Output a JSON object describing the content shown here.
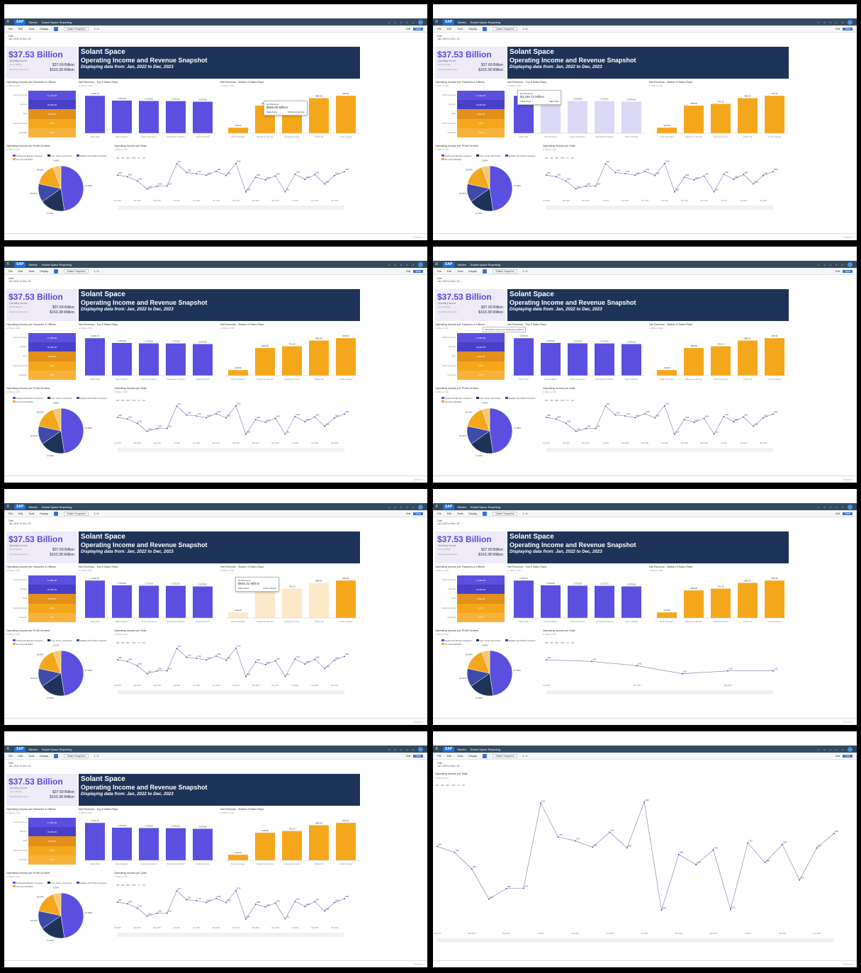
{
  "app": {
    "logo": "SAP",
    "section": "Stories",
    "story": "Solant Space Reporting",
    "menu": [
      "File",
      "Edit",
      "Tools",
      "Display"
    ],
    "page_selector": "Solant Snapshot",
    "page_count": "1 / 4",
    "edit_label": "Edit",
    "view_label": "View",
    "filter_label": "Date",
    "filter_value": "Jan, 2022 to Dec, 20...",
    "footer": "Sidebar"
  },
  "kpi": {
    "value": "$37.53 Billion",
    "label": "Operating Income",
    "gm_label": "Gross Margin",
    "gm_value": "$37.69 Billion",
    "oe_label": "Operating Expenses",
    "oe_value": "$163.38 Million"
  },
  "banner": {
    "title": "Solant Space",
    "subtitle": "Operating Income and Revenue Snapshot",
    "range": "Displaying data from: Jan, 2022 to Dec, 2023"
  },
  "widgets": {
    "factories_title": "Operating Income per Factories & Offices",
    "top5_title": "Net Revenue - Top 5 Sales Reps",
    "bottom5_title": "Net Revenue - Bottom 5 Sales Reps",
    "profit_title": "Operating Income per Profit Centers",
    "date_title": "Operating Income per Date",
    "unit": "in Millions USD",
    "time_buttons": [
      "1M",
      "3M",
      "6M",
      "YTD",
      "1Y",
      "All"
    ]
  },
  "popups": {
    "p1_label": "Net Revenue",
    "p1_value": "$696.99 Million",
    "p1_k1": "Sales Reps",
    "p1_v1": "Marianne Herman",
    "p2_label": "Net Revenue",
    "p2_value": "$3,169.72 Million",
    "p2_k1": "Sales Reps",
    "p2_v1": "Sally Plak",
    "p3_tooltip": "Operating Income per Factories & Offices",
    "p4_label": "Net Revenue",
    "p4_value": "$945.31 Million",
    "p4_k1": "Sales Reps",
    "p4_v1": "Cristin Hauser"
  },
  "colors": {
    "purple": "#5b4fe0",
    "orange": "#f5a71c",
    "navy": "#1e3358",
    "lavender": "#eeeaf8",
    "peach": "#fde9c8"
  },
  "chart_data": [
    {
      "type": "bar",
      "title": "Operating Income per Factories & Offices",
      "categories": [
        "North America",
        "Europe",
        "Asia",
        "South America",
        "Australia"
      ],
      "values": [
        17000.0,
        15200.0,
        3840.0,
        2.5,
        4.0
      ],
      "value_labels": [
        "17,000.00",
        "15,200.00",
        "3,840.00",
        "2.50",
        "4.00"
      ]
    },
    {
      "type": "bar",
      "title": "Net Revenue - Top 5 Sales Reps",
      "categories": [
        "Sally Plak",
        "Jake Rodgers",
        "Grant Carpenter",
        "Samantha Franklin",
        "Nolan Shields"
      ],
      "values": [
        3169.72,
        2766.0,
        2733.0,
        2722.21,
        2670.0
      ],
      "value_labels": [
        "3,169.72",
        "2,766.00",
        "2,733.00",
        "2,722.21",
        "2,670.00"
      ]
    },
    {
      "type": "bar",
      "title": "Net Revenue - Bottom 5 Sales Reps",
      "categories": [
        "Hank Schrager",
        "Marianne Herman",
        "Hastings Cruise",
        "Tahsin Ali",
        "Cristin Hauser"
      ],
      "values": [
        140.02,
        696.99,
        741.13,
        886.35,
        945.31
      ],
      "value_labels": [
        "140.02",
        "696.99",
        "741.13",
        "886.35",
        "945.31"
      ]
    },
    {
      "type": "pie",
      "title": "Operating Income per Profit Centers",
      "categories": [
        "Rocket and Booster Insurance",
        "Fuel, Joints, and Pumps",
        "Satellite and Orbiter Insurance",
        "Re-entry Hardware",
        "Other"
      ],
      "values": [
        47.58,
        17.62,
        13.15,
        16.05,
        5.6
      ],
      "value_labels": [
        "47.58%",
        "17.62%",
        "13.15%",
        "16.05%",
        "5.60%"
      ],
      "slice_colors": [
        "#5b4fe0",
        "#1e3358",
        "#3f4ba8",
        "#f5a71c",
        "#f8c870"
      ]
    },
    {
      "type": "line",
      "title": "Operating Income per Date",
      "x": [
        "Jan 2022",
        "Feb 2022",
        "Mar 2022",
        "Apr 2022",
        "May 2022",
        "Jun 2022",
        "Jul 2022",
        "Aug 2022",
        "Sep 2022",
        "Oct 2022",
        "Nov 2022",
        "Dec 2022",
        "Jan 2023",
        "Feb 2023",
        "Mar 2023",
        "Apr 2023",
        "May 2023",
        "Jun 2023",
        "Jul 2023",
        "Aug 2023",
        "Sep 2023",
        "Oct 2023",
        "Nov 2023",
        "Dec 2023"
      ],
      "y": [
        1667,
        1604,
        1432,
        1118,
        1228,
        1232,
        2117,
        1765,
        1724,
        1658,
        1815,
        1652,
        2128,
        1004,
        1583,
        1478,
        1630,
        1011,
        1702,
        1498,
        1687,
        1318,
        1651,
        1802
      ],
      "xlabel_ticks": [
        "Jan 2",
        "Jun 2022",
        "Feb 2022",
        "Mar 2022",
        "Apr 2022",
        "May 2022",
        "Jun 2022",
        "Jul 2022",
        "Aug 2022",
        "Sep 2022",
        "Oct 2022",
        "Nov 2022",
        "Dec 2022"
      ],
      "ylim": [
        800,
        2200
      ]
    }
  ]
}
